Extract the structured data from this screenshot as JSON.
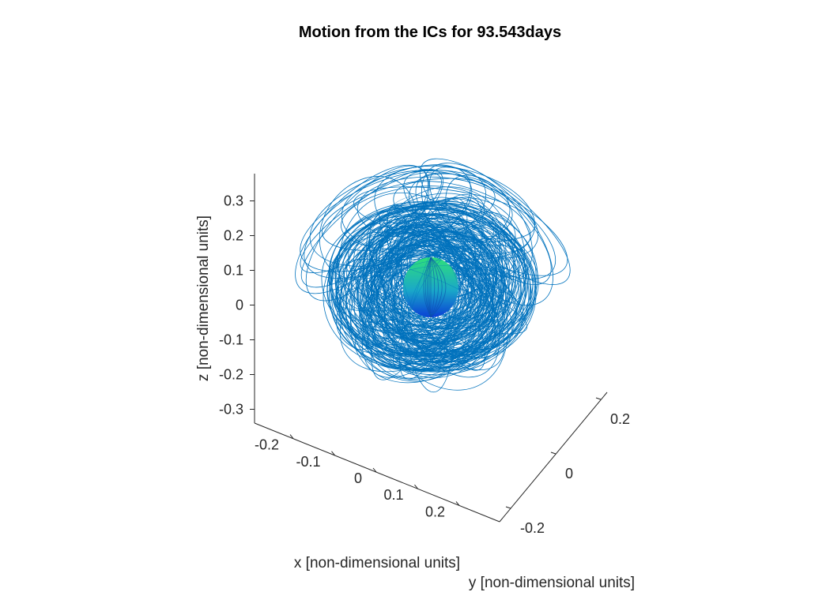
{
  "chart_data": {
    "type": "line",
    "projection": "3d",
    "title": "Motion from the ICs for 93.543days",
    "xlabel": "x [non-dimensional units]",
    "ylabel": "y [non-dimensional units]",
    "zlabel": "z [non-dimensional units]",
    "x_ticks": [
      -0.2,
      -0.1,
      0,
      0.1,
      0.2
    ],
    "x_tick_labels": [
      "-0.2",
      "-0.1",
      "0",
      "0.1",
      "0.2"
    ],
    "y_ticks": [
      -0.2,
      0,
      0.2
    ],
    "y_tick_labels": [
      "-0.2",
      "0",
      "0.2"
    ],
    "z_ticks": [
      -0.3,
      -0.2,
      -0.1,
      0,
      0.1,
      0.2,
      0.3
    ],
    "z_tick_labels": [
      "-0.3",
      "-0.2",
      "-0.1",
      "0",
      "0.1",
      "0.2",
      "0.3"
    ],
    "xlim": [
      -0.25,
      0.25
    ],
    "ylim": [
      -0.25,
      0.25
    ],
    "zlim": [
      -0.35,
      0.35
    ],
    "grid": false,
    "series": [
      {
        "kind": "trajectory",
        "color": "#0072BD",
        "description_shape": "dense looping orbit paths around central body, radius ~0.2, reaching z ~0.33 at top"
      },
      {
        "kind": "sphere",
        "center": [
          0,
          0,
          0
        ],
        "radius": 0.05,
        "colormap": [
          "#0a3fd6",
          "#1aa8c8",
          "#2fe07a"
        ]
      }
    ]
  },
  "colors": {
    "orbit": "#0072BD",
    "axis": "#262626",
    "sphere_low": "#0a3fd6",
    "sphere_mid": "#1aa8c8",
    "sphere_high": "#2fe07a"
  }
}
